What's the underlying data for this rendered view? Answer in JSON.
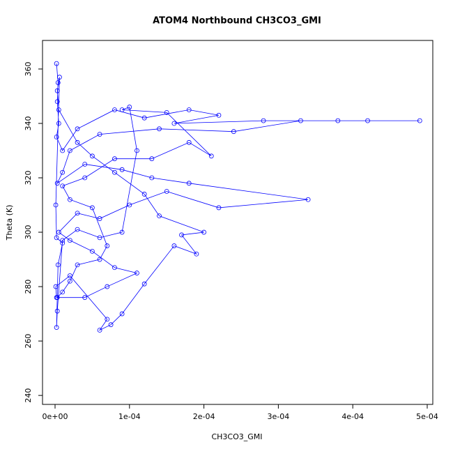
{
  "chart_data": {
    "type": "line",
    "markers": "circle",
    "title": "ATOM4 Northbound CH3CO3_GMI",
    "x_label": "CH3CO3_GMI",
    "y_label": "Theta (K)",
    "xlim": [
      -1.685e-05,
      0.0005075
    ],
    "ylim": [
      236.7,
      370.5
    ],
    "xticks": [
      {
        "value": 0,
        "label": "0e+00"
      },
      {
        "value": 0.0001,
        "label": "1e-04"
      },
      {
        "value": 0.0002,
        "label": "2e-04"
      },
      {
        "value": 0.0003,
        "label": "3e-04"
      },
      {
        "value": 0.0004,
        "label": "4e-04"
      },
      {
        "value": 0.0005,
        "label": "5e-04"
      }
    ],
    "yticks": [
      240,
      260,
      280,
      300,
      320,
      340,
      360
    ],
    "color": "#0000ff",
    "x": [
      2e-06,
      4e-06,
      3e-06,
      5e-06,
      2e-06,
      1e-05,
      3e-05,
      8e-05,
      0.00012,
      0.00018,
      0.00022,
      0.00016,
      0.00028,
      0.00038,
      0.00049,
      0.00042,
      0.00033,
      0.00024,
      0.00014,
      6e-05,
      2e-05,
      1e-05,
      3e-06,
      4e-05,
      9e-05,
      0.00013,
      0.00018,
      0.00034,
      0.00022,
      0.00015,
      0.0001,
      6e-05,
      3e-05,
      5e-06,
      2e-05,
      5e-05,
      8e-05,
      0.00011,
      7e-05,
      4e-05,
      2e-06,
      1e-06,
      2e-05,
      7e-05,
      6e-05,
      7.5e-05,
      9e-05,
      0.00012,
      0.00016,
      0.00019,
      0.00017,
      0.0002,
      0.00014,
      0.00012,
      8e-05,
      5e-05,
      3e-05,
      5e-06,
      3e-06,
      6e-06,
      1e-06,
      2e-06,
      1e-05,
      4e-06,
      2e-06,
      3e-06,
      1e-05,
      3e-05,
      6e-05,
      9e-05,
      0.00011,
      0.0001,
      9e-05,
      0.00015,
      0.00021,
      0.00018,
      0.00013,
      8e-05,
      4e-05,
      1e-05,
      2e-05,
      5e-05,
      7e-05,
      6e-05,
      3e-05,
      2e-05,
      1e-05,
      3e-06
    ],
    "y": [
      362,
      355,
      348,
      340,
      335,
      330,
      338,
      345,
      342,
      345,
      343,
      340,
      341,
      341,
      341,
      341,
      341,
      337,
      338,
      336,
      330,
      322,
      318,
      325,
      323,
      320,
      318,
      312,
      309,
      315,
      310,
      305,
      307,
      300,
      297,
      293,
      287,
      285,
      280,
      276,
      276,
      280,
      284,
      268,
      264,
      266,
      270,
      281,
      295,
      292,
      299,
      300,
      306,
      314,
      322,
      328,
      333,
      345,
      352,
      357,
      310,
      298,
      296,
      288,
      265,
      271,
      297,
      301,
      298,
      300,
      330,
      346,
      345,
      344,
      328,
      333,
      327,
      327,
      320,
      317,
      312,
      309,
      295,
      290,
      288,
      282,
      278,
      276
    ]
  }
}
